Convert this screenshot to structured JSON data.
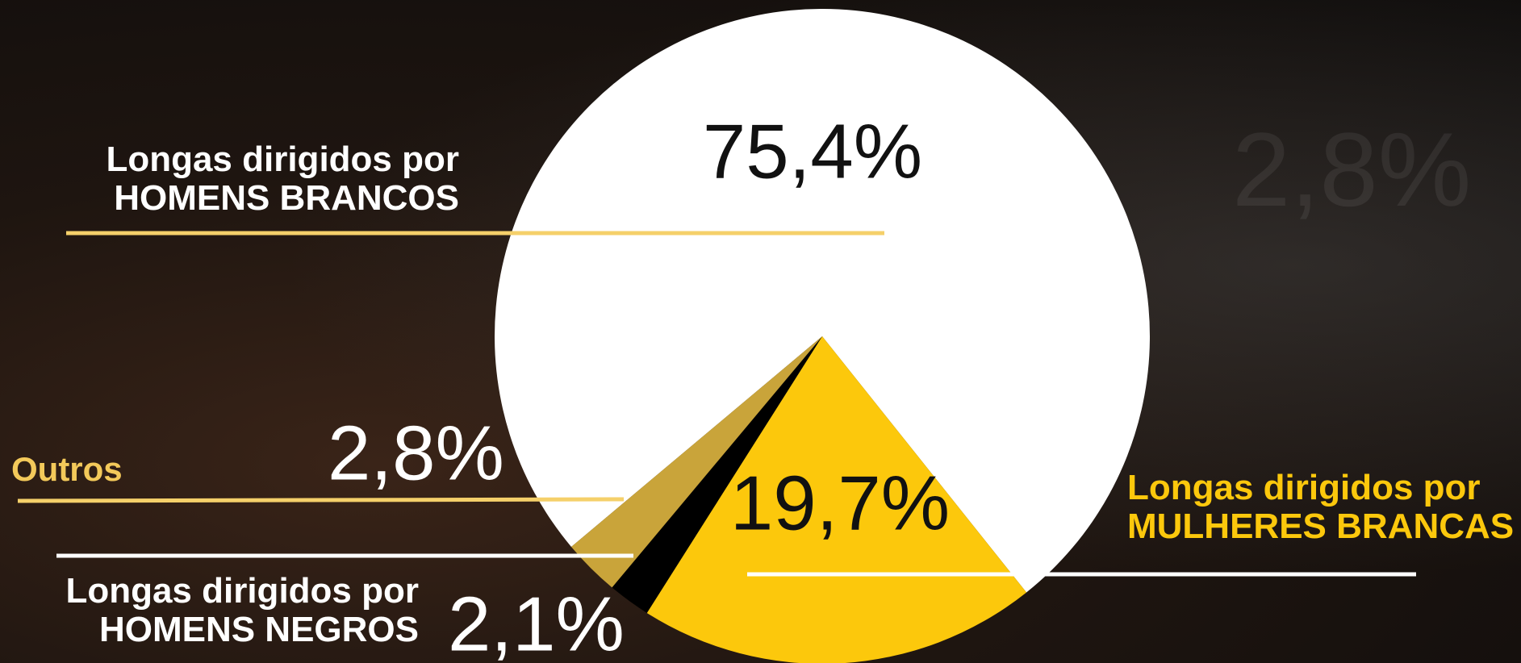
{
  "chart_data": {
    "type": "pie",
    "series": [
      {
        "name": "Longas dirigidos por\nHOMENS BRANCOS",
        "color": "#ffffff",
        "values": [
          75.4
        ],
        "value_labels": [
          "75,4%"
        ]
      },
      {
        "name": "Longas dirigidos por\nMULHERES BRANCAS",
        "color": "#fcc80c",
        "values": [
          19.7
        ],
        "value_labels": [
          "19,7%"
        ]
      },
      {
        "name": "Longas dirigidos por\nHOMENS NEGROS",
        "color": "#000000",
        "values": [
          2.1
        ],
        "value_labels": [
          "2,1%"
        ]
      },
      {
        "name": "Outros",
        "color": "#c9a43a",
        "values": [
          2.8
        ],
        "value_labels": [
          "2,8%"
        ]
      }
    ]
  }
}
